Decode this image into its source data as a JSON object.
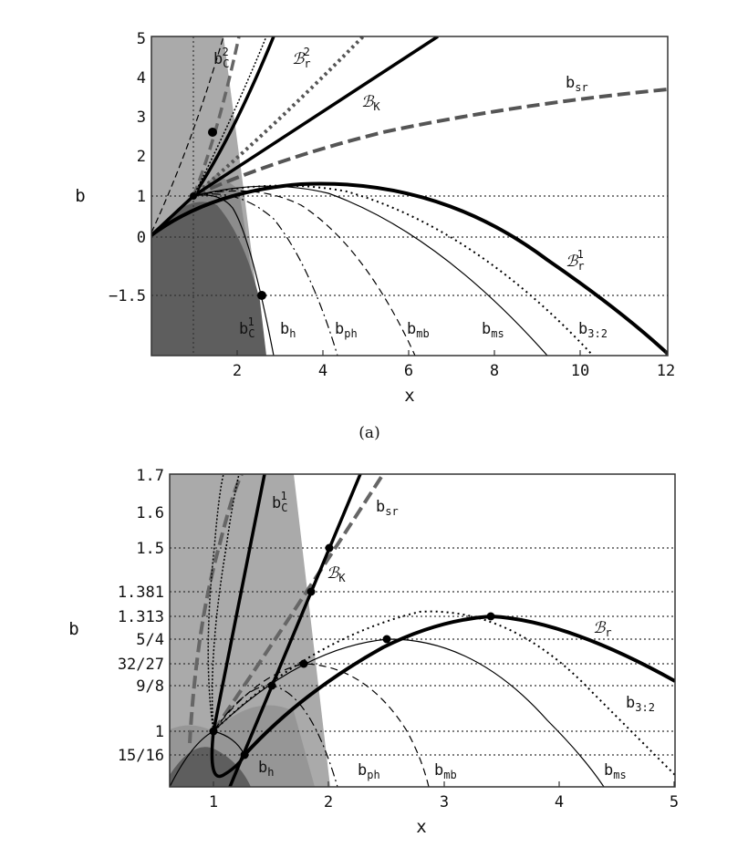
{
  "chart_data": [
    {
      "type": "line",
      "caption": "(a)",
      "xlabel": "x",
      "ylabel": "b",
      "xlim": [
        0,
        12
      ],
      "ylim": [
        -3,
        5
      ],
      "xticks": [
        "2",
        "4",
        "6",
        "8",
        "10",
        "12"
      ],
      "yticks": [
        "5",
        "4",
        "3",
        "2",
        "1",
        "0",
        "−1.5"
      ],
      "curve_labels": [
        {
          "text": "b",
          "sub": "C",
          "sup": "2"
        },
        {
          "text": "ℬ",
          "sub": "r",
          "sup": "2"
        },
        {
          "text": "ℬ",
          "sub": "K",
          "sup": ""
        },
        {
          "text": "b",
          "sub": "sr",
          "sup": ""
        },
        {
          "text": "ℬ",
          "sub": "r",
          "sup": "1"
        },
        {
          "text": "b",
          "sub": "C",
          "sup": "1"
        },
        {
          "text": "b",
          "sub": "h",
          "sup": ""
        },
        {
          "text": "b",
          "sub": "ph",
          "sup": ""
        },
        {
          "text": "b",
          "sub": "mb",
          "sup": ""
        },
        {
          "text": "b",
          "sub": "ms",
          "sup": ""
        },
        {
          "text": "b",
          "sub": "3:2",
          "sup": ""
        }
      ],
      "points": [
        [
          1.5,
          2.6
        ],
        [
          2.6,
          -1.5
        ],
        [
          1.0,
          1.0
        ]
      ]
    },
    {
      "type": "line",
      "caption": "",
      "xlabel": "x",
      "ylabel": "b",
      "xlim": [
        0.6,
        5
      ],
      "ylim": [
        0.85,
        1.7
      ],
      "xticks": [
        "1",
        "2",
        "3",
        "4",
        "5"
      ],
      "yticks": [
        "1.7",
        "1.6",
        "1.5",
        "1.381",
        "1.313",
        "5/4",
        "32/27",
        "9/8",
        "1",
        "15/16"
      ],
      "curve_labels": [
        {
          "text": "b",
          "sub": "C",
          "sup": "1"
        },
        {
          "text": "b",
          "sub": "sr",
          "sup": ""
        },
        {
          "text": "ℬ",
          "sub": "K",
          "sup": ""
        },
        {
          "text": "ℬ",
          "sub": "r",
          "sup": ""
        },
        {
          "text": "b",
          "sub": "3:2",
          "sup": ""
        },
        {
          "text": "b",
          "sub": "h",
          "sup": ""
        },
        {
          "text": "b",
          "sub": "ph",
          "sup": ""
        },
        {
          "text": "b",
          "sub": "mb",
          "sup": ""
        },
        {
          "text": "b",
          "sub": "ms",
          "sup": ""
        }
      ],
      "points": [
        [
          2.0,
          1.5
        ],
        [
          1.83,
          1.381
        ],
        [
          3.41,
          1.313
        ],
        [
          2.5,
          1.25
        ],
        [
          1.78,
          1.185
        ],
        [
          1.5,
          1.125
        ],
        [
          1.0,
          1.0
        ],
        [
          1.25,
          0.9375
        ]
      ]
    }
  ]
}
